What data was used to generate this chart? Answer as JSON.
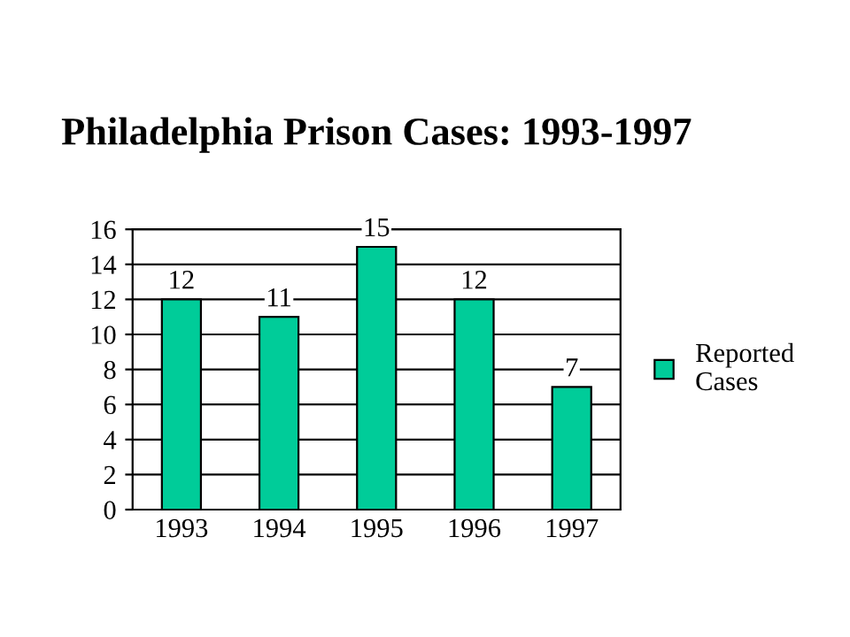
{
  "chart_data": {
    "type": "bar",
    "title": "Philadelphia Prison Cases: 1993-1997",
    "categories": [
      "1993",
      "1994",
      "1995",
      "1996",
      "1997"
    ],
    "series": [
      {
        "name": "Reported Cases",
        "color": "#00cc99",
        "values": [
          12,
          11,
          15,
          12,
          7
        ]
      }
    ],
    "ylim": [
      0,
      16
    ],
    "yticks": [
      0,
      2,
      4,
      6,
      8,
      10,
      12,
      14,
      16
    ],
    "grid": "y",
    "legend": "right",
    "data_labels": true
  }
}
